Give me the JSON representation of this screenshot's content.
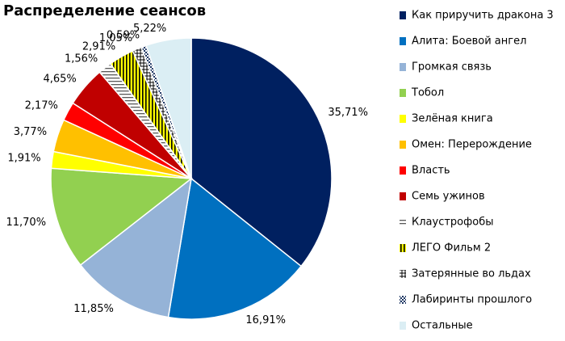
{
  "chart_data": {
    "type": "pie",
    "title": "Распределение сеансов",
    "categories": [
      "Как приручить дракона 3",
      "Алита: Боевой ангел",
      "Громкая связь",
      "Тобол",
      "Зелёная книга",
      "Омен: Перерождение",
      "Власть",
      "Семь ужинов",
      "Клаустрофобы",
      "ЛЕГО Фильм 2",
      "Затерянные во льдах",
      "Лабиринты прошлого",
      "Остальные"
    ],
    "values": [
      35.71,
      16.91,
      11.85,
      11.7,
      1.91,
      3.77,
      2.17,
      4.65,
      1.56,
      2.91,
      1.05,
      0.59,
      5.22
    ],
    "value_labels": [
      "35,71%",
      "16,91%",
      "11,85%",
      "11,70%",
      "1,91%",
      "3,77%",
      "2,17%",
      "4,65%",
      "1,56%",
      "2,91%",
      "1,05%",
      "0,59%",
      "5,22%"
    ],
    "colors": [
      "#002060",
      "#0070c0",
      "#95b3d7",
      "#92d050",
      "#ffff00",
      "#ffc000",
      "#ff0000",
      "#c00000",
      "#595959",
      "#000000",
      "#000000",
      "#1f3864",
      "#dbeef4"
    ],
    "patterns": [
      null,
      null,
      null,
      null,
      null,
      null,
      null,
      null,
      "horizontal",
      "vertical",
      "cross",
      "checker",
      null
    ],
    "legend": "right"
  }
}
